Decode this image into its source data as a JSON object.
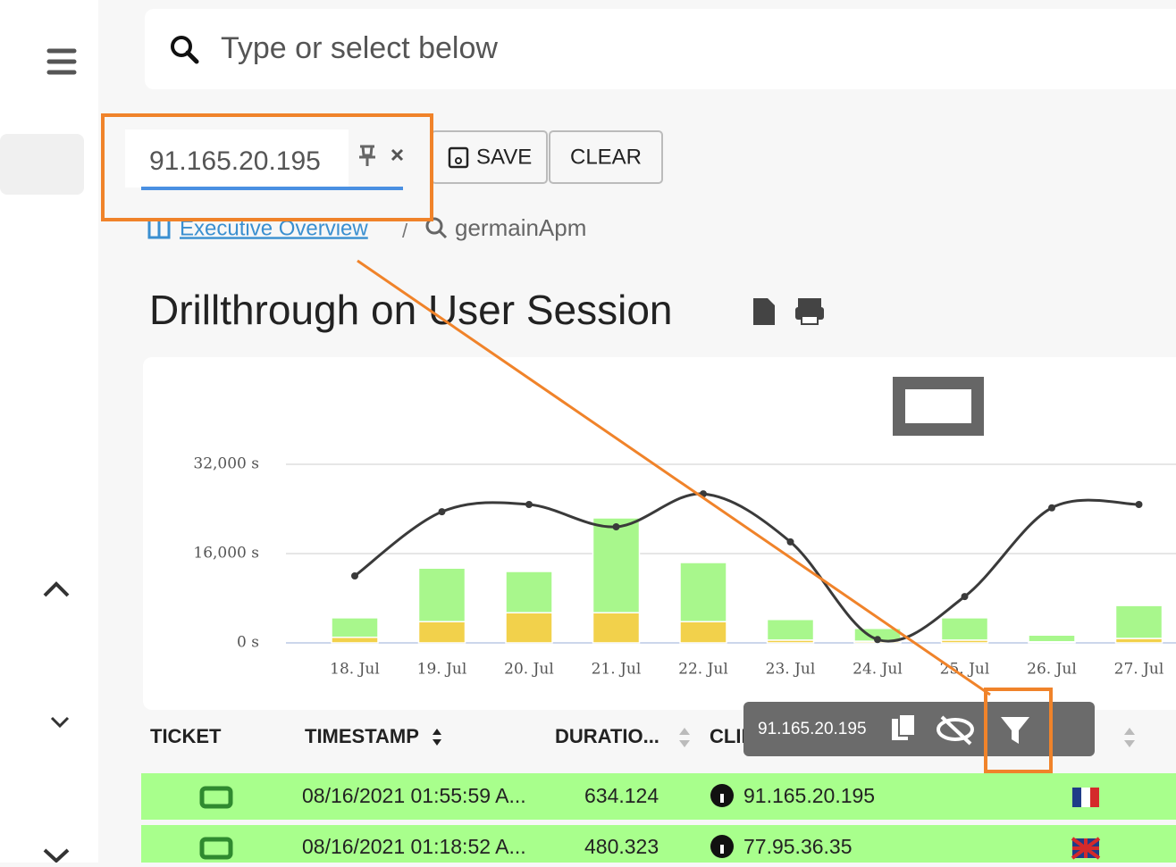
{
  "search": {
    "placeholder": "Type or select below"
  },
  "filter": {
    "chip": "91.165.20.195",
    "buttons": [
      "SAVE",
      "CLEAR"
    ]
  },
  "breadcrumb": [
    "Executive Overview",
    "germainApm"
  ],
  "title": "Drillthrough on User Session",
  "chart_data": {
    "type": "bar",
    "categories": [
      "18. Jul",
      "19. Jul",
      "20. Jul",
      "21. Jul",
      "22. Jul",
      "23. Jul",
      "24. Jul",
      "25. Jul",
      "26. Jul",
      "27. Jul"
    ],
    "series": [
      {
        "color": "#f2d14b",
        "values": [
          1000,
          3800,
          5400,
          5400,
          3800,
          500,
          300,
          500,
          200,
          800
        ]
      },
      {
        "color": "#a8f78c",
        "values": [
          3500,
          9600,
          7400,
          17000,
          10600,
          3700,
          2300,
          4000,
          1200,
          5900
        ]
      },
      {
        "type": "line",
        "color": "#3a3a3a",
        "values": [
          12000,
          23500,
          24800,
          20800,
          26700,
          18100,
          600,
          8300,
          24200,
          24800
        ]
      }
    ],
    "stacked": true,
    "ylim": [
      0,
      32000
    ],
    "yticks": [
      {
        "value": 0,
        "label": "0 s"
      },
      {
        "value": 16000,
        "label": "16,000 s"
      },
      {
        "value": 32000,
        "label": "32,000 s"
      }
    ],
    "grid": true
  },
  "tooltip": {
    "text": "91.165.20.195"
  },
  "table": {
    "headers": [
      "TICKET",
      "TIMESTAMP",
      "DURATIO...",
      "CLIENT"
    ],
    "rows": [
      [
        "08/16/2021 01:55:59 A...",
        "634.124",
        "91.165.20.195"
      ],
      [
        "08/16/2021 01:18:52 A...",
        "480.323",
        "77.95.36.35"
      ]
    ]
  }
}
